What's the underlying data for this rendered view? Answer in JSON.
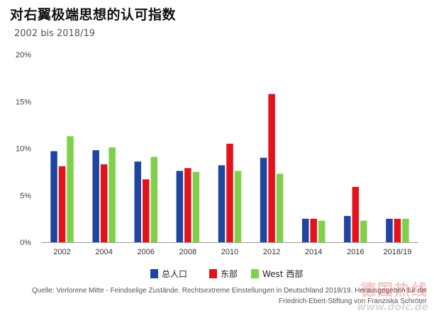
{
  "title": "对右翼极端思想的认可指数",
  "subtitle": "2002 bis 2018/19",
  "source": {
    "line1": "Quelle: Verlorene Mitte - Feindselige Zustände. Rechtsextreme Einstellungen in Deutschland 2018/19. Herausgegeben für die",
    "line2": "Friedrich-Ebert-Stiftung von Franziska Schröter"
  },
  "watermark": {
    "text": "德国热线",
    "url": "www.dolc.de"
  },
  "chart_data": {
    "type": "bar",
    "categories": [
      "2002",
      "2004",
      "2006",
      "2008",
      "2010",
      "2012",
      "2014",
      "2016",
      "2018/19"
    ],
    "series": [
      {
        "name": "总人口",
        "color": "#1f45a0",
        "values": [
          9.7,
          9.8,
          8.6,
          7.6,
          8.2,
          9.0,
          2.5,
          2.8,
          2.5
        ]
      },
      {
        "name": "东部",
        "color": "#e3121b",
        "values": [
          8.1,
          8.3,
          6.7,
          7.9,
          10.5,
          15.8,
          2.5,
          5.9,
          2.5
        ]
      },
      {
        "name": "West  西部",
        "color": "#7fd14c",
        "values": [
          11.3,
          10.1,
          9.1,
          7.5,
          7.6,
          7.3,
          2.3,
          2.3,
          2.5
        ]
      }
    ],
    "yticks": [
      "0%",
      "5%",
      "10%",
      "15%",
      "20%"
    ],
    "ylim": [
      0,
      20
    ],
    "grid": false,
    "legend_position": "bottom"
  }
}
